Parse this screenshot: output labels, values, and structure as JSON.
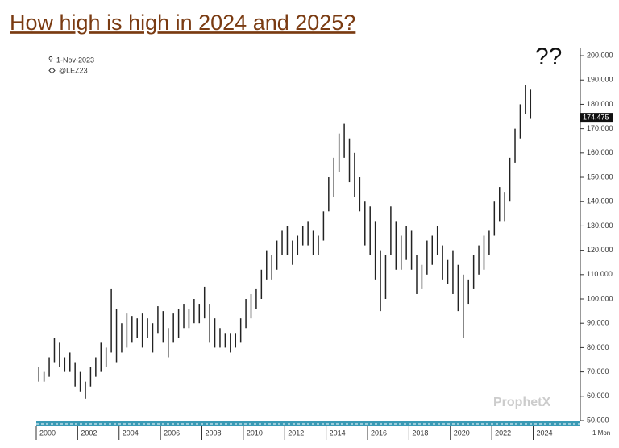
{
  "chart_data": {
    "type": "hilo",
    "title": "How high is high in 2024 and 2025?",
    "annotation": "??",
    "date_label": "1-Nov-2023",
    "symbol": "@LEZ23",
    "last_price": 174.475,
    "period_label": "1 Mon",
    "watermark": "ProphetX",
    "color": "#222222",
    "x": [
      2000.125,
      2000.375,
      2000.625,
      2000.875,
      2001.125,
      2001.375,
      2001.625,
      2001.875,
      2002.125,
      2002.375,
      2002.625,
      2002.875,
      2003.125,
      2003.375,
      2003.625,
      2003.875,
      2004.125,
      2004.375,
      2004.625,
      2004.875,
      2005.125,
      2005.375,
      2005.625,
      2005.875,
      2006.125,
      2006.375,
      2006.625,
      2006.875,
      2007.125,
      2007.375,
      2007.625,
      2007.875,
      2008.125,
      2008.375,
      2008.625,
      2008.875,
      2009.125,
      2009.375,
      2009.625,
      2009.875,
      2010.125,
      2010.375,
      2010.625,
      2010.875,
      2011.125,
      2011.375,
      2011.625,
      2011.875,
      2012.125,
      2012.375,
      2012.625,
      2012.875,
      2013.125,
      2013.375,
      2013.625,
      2013.875,
      2014.125,
      2014.375,
      2014.625,
      2014.875,
      2015.125,
      2015.375,
      2015.625,
      2015.875,
      2016.125,
      2016.375,
      2016.625,
      2016.875,
      2017.125,
      2017.375,
      2017.625,
      2017.875,
      2018.125,
      2018.375,
      2018.625,
      2018.875,
      2019.125,
      2019.375,
      2019.625,
      2019.875,
      2020.125,
      2020.375,
      2020.625,
      2020.875,
      2021.125,
      2021.375,
      2021.625,
      2021.875,
      2022.125,
      2022.375,
      2022.625,
      2022.875,
      2023.125,
      2023.375,
      2023.625,
      2023.875
    ],
    "high": [
      72,
      70,
      76,
      84,
      82,
      76,
      78,
      74,
      70,
      66,
      72,
      76,
      82,
      80,
      104,
      96,
      90,
      94,
      93,
      92,
      94,
      92,
      90,
      97,
      95,
      88,
      94,
      96,
      98,
      96,
      100,
      98,
      105,
      98,
      92,
      88,
      86,
      86,
      86,
      92,
      100,
      102,
      104,
      112,
      120,
      118,
      124,
      128,
      130,
      124,
      126,
      130,
      132,
      128,
      126,
      136,
      150,
      158,
      168,
      172,
      166,
      160,
      150,
      140,
      138,
      132,
      120,
      118,
      138,
      132,
      126,
      130,
      128,
      118,
      114,
      124,
      126,
      130,
      122,
      116,
      120,
      114,
      110,
      108,
      118,
      122,
      126,
      128,
      140,
      146,
      144,
      158,
      170,
      180,
      188,
      186
    ],
    "low": [
      66,
      66,
      68,
      74,
      72,
      70,
      70,
      64,
      62,
      59,
      64,
      68,
      70,
      72,
      78,
      74,
      78,
      80,
      82,
      84,
      80,
      84,
      78,
      86,
      82,
      76,
      82,
      84,
      88,
      88,
      90,
      90,
      92,
      82,
      80,
      80,
      80,
      78,
      80,
      82,
      88,
      92,
      96,
      100,
      108,
      108,
      112,
      118,
      118,
      114,
      118,
      122,
      122,
      118,
      118,
      124,
      136,
      142,
      152,
      158,
      148,
      142,
      136,
      122,
      118,
      108,
      95,
      100,
      118,
      112,
      112,
      116,
      112,
      102,
      104,
      110,
      114,
      118,
      108,
      106,
      102,
      95,
      84,
      98,
      104,
      110,
      112,
      118,
      126,
      132,
      132,
      140,
      156,
      166,
      176,
      174
    ],
    "ylim": [
      50,
      202
    ],
    "yticks": [
      {
        "value": 50,
        "label": "50.000"
      },
      {
        "value": 60,
        "label": "60.000"
      },
      {
        "value": 70,
        "label": "70.000"
      },
      {
        "value": 80,
        "label": "80.000"
      },
      {
        "value": 90,
        "label": "90.000"
      },
      {
        "value": 100,
        "label": "100.000"
      },
      {
        "value": 110,
        "label": "110.000"
      },
      {
        "value": 120,
        "label": "120.000"
      },
      {
        "value": 130,
        "label": "130.000"
      },
      {
        "value": 140,
        "label": "140.000"
      },
      {
        "value": 150,
        "label": "150.000"
      },
      {
        "value": 160,
        "label": "160.000"
      },
      {
        "value": 170,
        "label": "170.000"
      },
      {
        "value": 180,
        "label": "180.000"
      },
      {
        "value": 190,
        "label": "190.000"
      },
      {
        "value": 200,
        "label": "200.000"
      }
    ],
    "xlim": [
      2000,
      2026.2
    ],
    "xticks": [
      2000,
      2002,
      2004,
      2006,
      2008,
      2010,
      2012,
      2014,
      2016,
      2018,
      2020,
      2022,
      2024
    ]
  }
}
